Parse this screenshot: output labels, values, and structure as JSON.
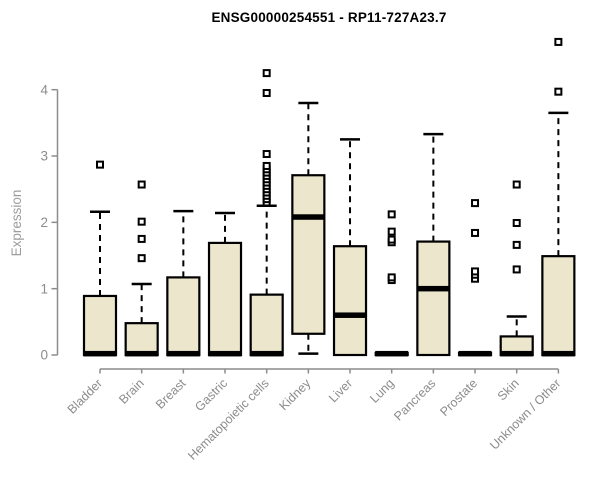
{
  "chart_data": {
    "type": "boxplot",
    "title": "ENSG00000254551 - RP11-727A23.7",
    "xlabel": "",
    "ylabel": "Expression",
    "yticks": [
      0,
      1,
      2,
      3,
      4
    ],
    "ylim": [
      0,
      4.75
    ],
    "grid": false,
    "legend": "none",
    "categories": [
      "Bladder",
      "Brain",
      "Breast",
      "Gastric",
      "Hematopoietic cells",
      "Kidney",
      "Liver",
      "Lung",
      "Pancreas",
      "Prostate",
      "Skin",
      "Unknown / Other"
    ],
    "boxes": [
      {
        "category": "Bladder",
        "q1": 0,
        "median": 0.02,
        "q3": 0.89,
        "whisker_low": 0,
        "whisker_high": 2.16,
        "outliers": [
          2.87
        ]
      },
      {
        "category": "Brain",
        "q1": 0,
        "median": 0.02,
        "q3": 0.48,
        "whisker_low": 0,
        "whisker_high": 1.07,
        "outliers": [
          1.46,
          1.75,
          2.01,
          2.57
        ]
      },
      {
        "category": "Breast",
        "q1": 0,
        "median": 0.02,
        "q3": 1.17,
        "whisker_low": 0,
        "whisker_high": 2.17,
        "outliers": []
      },
      {
        "category": "Gastric",
        "q1": 0,
        "median": 0.02,
        "q3": 1.69,
        "whisker_low": 0,
        "whisker_high": 2.14,
        "outliers": []
      },
      {
        "category": "Hematopoietic cells",
        "q1": 0,
        "median": 0.02,
        "q3": 0.91,
        "whisker_low": 0,
        "whisker_high": 2.25,
        "outliers": [
          2.3,
          2.35,
          2.4,
          2.45,
          2.5,
          2.55,
          2.6,
          2.65,
          2.7,
          2.75,
          2.8,
          2.85,
          3.03,
          3.95,
          4.25
        ]
      },
      {
        "category": "Kidney",
        "q1": 0.32,
        "median": 2.08,
        "q3": 2.71,
        "whisker_low": 0.02,
        "whisker_high": 3.8,
        "outliers": []
      },
      {
        "category": "Liver",
        "q1": 0,
        "median": 0.6,
        "q3": 1.64,
        "whisker_low": 0,
        "whisker_high": 3.25,
        "outliers": []
      },
      {
        "category": "Lung",
        "q1": 0,
        "median": 0.02,
        "q3": 0.03,
        "whisker_low": 0,
        "whisker_high": 0.03,
        "outliers": [
          1.13,
          1.17,
          1.7,
          1.74,
          1.86,
          2.12
        ]
      },
      {
        "category": "Pancreas",
        "q1": 0,
        "median": 1.0,
        "q3": 1.71,
        "whisker_low": 0,
        "whisker_high": 3.33,
        "outliers": []
      },
      {
        "category": "Prostate",
        "q1": 0,
        "median": 0.02,
        "q3": 0.03,
        "whisker_low": 0,
        "whisker_high": 0.03,
        "outliers": [
          1.15,
          1.21,
          1.26,
          1.84,
          2.29
        ]
      },
      {
        "category": "Skin",
        "q1": 0,
        "median": 0.02,
        "q3": 0.28,
        "whisker_low": 0,
        "whisker_high": 0.58,
        "outliers": [
          1.29,
          1.66,
          1.99,
          2.57
        ]
      },
      {
        "category": "Unknown / Other",
        "q1": 0,
        "median": 0.02,
        "q3": 1.49,
        "whisker_low": 0,
        "whisker_high": 3.65,
        "outliers": [
          3.97,
          4.72
        ]
      }
    ],
    "colors": {
      "box_fill": "#ECE7CC",
      "box_stroke": "#000000",
      "median": "#000000",
      "whisker": "#000000",
      "outlier_stroke": "#000000",
      "outlier_fill": "#FFFFFF",
      "axis": "#8C8C8C",
      "tick_label": "#8C8C8C",
      "axis_label": "#9C9C9C",
      "title": "#000000",
      "background": "#FFFFFF"
    }
  }
}
